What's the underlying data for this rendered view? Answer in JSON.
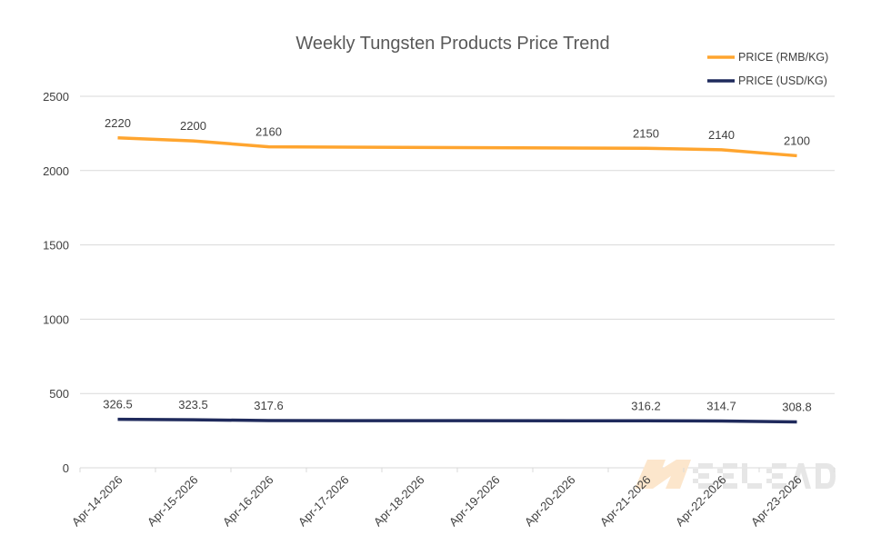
{
  "chart_data": {
    "type": "line",
    "title": "Weekly Tungsten Products Price Trend",
    "categories": [
      "Apr-14-2026",
      "Apr-15-2026",
      "Apr-16-2026",
      "Apr-17-2026",
      "Apr-18-2026",
      "Apr-19-2026",
      "Apr-20-2026",
      "Apr-21-2026",
      "Apr-22-2026",
      "Apr-23-2026"
    ],
    "series": [
      {
        "name": "PRICE (RMB/KG)",
        "color": "#FFA52F",
        "values": [
          2220,
          2200,
          2160,
          null,
          null,
          null,
          null,
          2150,
          2140,
          2100
        ]
      },
      {
        "name": "PRICE (USD/KG)",
        "color": "#1F2A5C",
        "values": [
          326.5,
          323.5,
          317.6,
          null,
          null,
          null,
          null,
          316.2,
          314.7,
          308.8
        ]
      }
    ],
    "yticks": [
      0,
      500,
      1000,
      1500,
      2000,
      2500
    ],
    "ylim": [
      0,
      2500
    ],
    "grid": "horizontal",
    "legend": "top-right",
    "data_labels": true,
    "gaps": "connected",
    "watermark": "MEELEAD"
  }
}
